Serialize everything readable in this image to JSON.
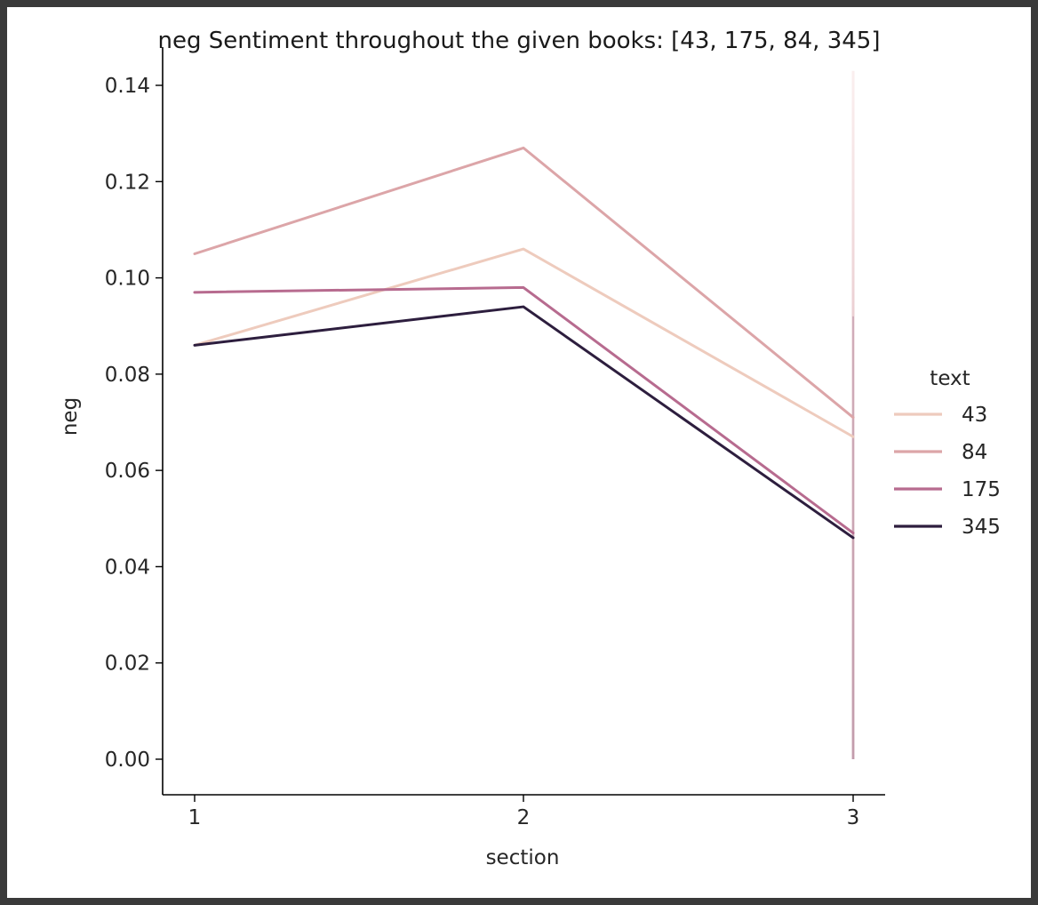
{
  "chart_data": {
    "type": "line",
    "title": "neg Sentiment throughout the given books: [43, 175, 84, 345]",
    "xlabel": "section",
    "ylabel": "neg",
    "x": [
      1,
      2,
      3
    ],
    "x_ticks": [
      "1",
      "2",
      "3"
    ],
    "y_ticks": [
      "0.00",
      "0.02",
      "0.04",
      "0.06",
      "0.08",
      "0.10",
      "0.12",
      "0.14"
    ],
    "ylim": [
      0,
      0.14
    ],
    "grid": false,
    "legend": {
      "title": "text",
      "placement": "right"
    },
    "series": [
      {
        "name": "43",
        "values": [
          0.086,
          0.106,
          0.067
        ],
        "color": "#eecbbd"
      },
      {
        "name": "84",
        "values": [
          0.105,
          0.127,
          0.071
        ],
        "color": "#dca5a8"
      },
      {
        "name": "175",
        "values": [
          0.097,
          0.098,
          0.047
        ],
        "color": "#b76b8f"
      },
      {
        "name": "345",
        "values": [
          0.086,
          0.094,
          0.046
        ],
        "color": "#2d1e3e"
      }
    ],
    "vertical_band": {
      "x": 3,
      "y_range": [
        0.0,
        0.143
      ]
    }
  }
}
